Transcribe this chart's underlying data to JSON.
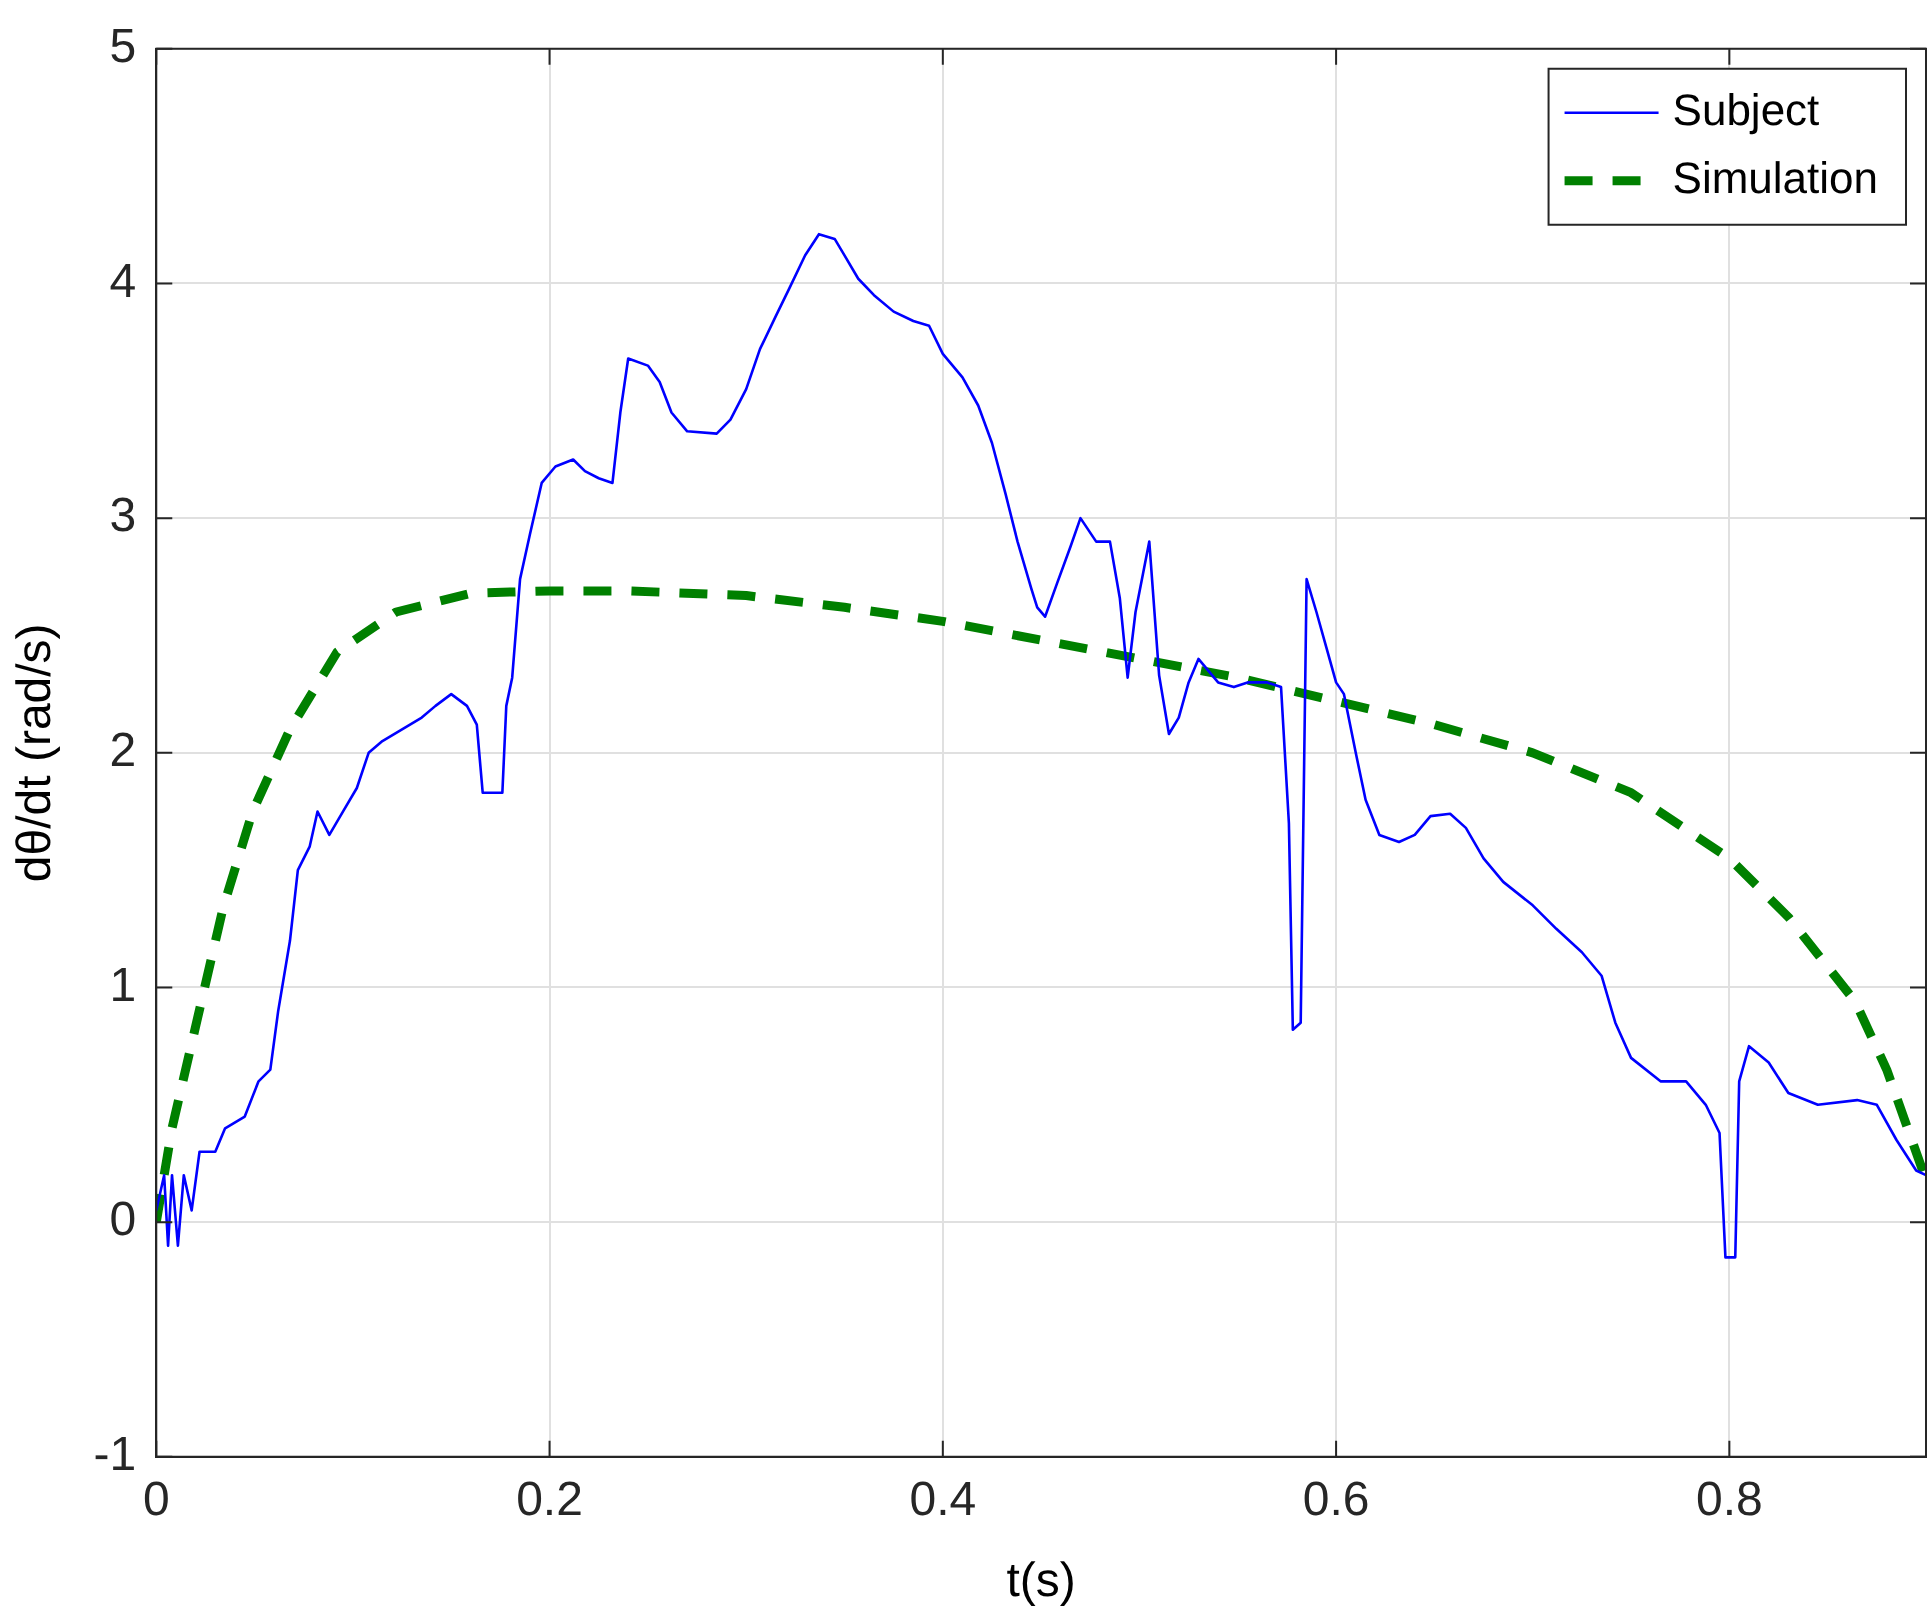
{
  "chart_data": {
    "type": "line",
    "xlabel": "t(s)",
    "ylabel": "dθ/dt (rad/s)",
    "xlim": [
      0,
      0.9
    ],
    "ylim": [
      -1,
      5
    ],
    "xticks": [
      0,
      0.2,
      0.4,
      0.6,
      0.8
    ],
    "yticks": [
      -1,
      0,
      1,
      2,
      3,
      4,
      5
    ],
    "grid": true,
    "legend": "top right",
    "series": [
      {
        "name": "Subject",
        "color": "#0000ff",
        "line_style": "solid",
        "x": [
          0,
          0.004,
          0.006,
          0.008,
          0.011,
          0.014,
          0.018,
          0.022,
          0.03,
          0.035,
          0.045,
          0.052,
          0.058,
          0.062,
          0.068,
          0.072,
          0.078,
          0.082,
          0.088,
          0.095,
          0.102,
          0.108,
          0.115,
          0.125,
          0.135,
          0.142,
          0.15,
          0.158,
          0.163,
          0.166,
          0.176,
          0.178,
          0.181,
          0.185,
          0.19,
          0.196,
          0.203,
          0.212,
          0.218,
          0.225,
          0.232,
          0.236,
          0.24,
          0.25,
          0.256,
          0.262,
          0.27,
          0.285,
          0.292,
          0.3,
          0.307,
          0.315,
          0.322,
          0.33,
          0.337,
          0.345,
          0.35,
          0.357,
          0.365,
          0.375,
          0.385,
          0.393,
          0.4,
          0.41,
          0.418,
          0.425,
          0.432,
          0.438,
          0.445,
          0.448,
          0.452,
          0.458,
          0.465,
          0.47,
          0.478,
          0.485,
          0.49,
          0.494,
          0.498,
          0.505,
          0.51,
          0.515,
          0.52,
          0.525,
          0.53,
          0.54,
          0.548,
          0.555,
          0.565,
          0.572,
          0.576,
          0.578,
          0.582,
          0.585,
          0.59,
          0.595,
          0.6,
          0.604,
          0.61,
          0.615,
          0.622,
          0.632,
          0.64,
          0.648,
          0.658,
          0.666,
          0.675,
          0.685,
          0.7,
          0.712,
          0.725,
          0.735,
          0.742,
          0.75,
          0.765,
          0.778,
          0.788,
          0.795,
          0.798,
          0.803,
          0.805,
          0.81,
          0.82,
          0.83,
          0.845,
          0.865,
          0.875,
          0.885,
          0.895,
          0.9
        ],
        "values": [
          0.05,
          0.2,
          -0.1,
          0.2,
          -0.1,
          0.2,
          0.05,
          0.3,
          0.3,
          0.4,
          0.45,
          0.6,
          0.65,
          0.9,
          1.2,
          1.5,
          1.6,
          1.75,
          1.65,
          1.75,
          1.85,
          2.0,
          2.05,
          2.1,
          2.15,
          2.2,
          2.25,
          2.2,
          2.12,
          1.83,
          1.83,
          2.2,
          2.32,
          2.74,
          2.93,
          3.15,
          3.22,
          3.25,
          3.2,
          3.17,
          3.15,
          3.45,
          3.68,
          3.65,
          3.58,
          3.45,
          3.37,
          3.36,
          3.42,
          3.55,
          3.72,
          3.86,
          3.98,
          4.12,
          4.21,
          4.19,
          4.12,
          4.02,
          3.95,
          3.88,
          3.84,
          3.82,
          3.7,
          3.6,
          3.48,
          3.32,
          3.1,
          2.9,
          2.7,
          2.62,
          2.58,
          2.72,
          2.88,
          3.0,
          2.9,
          2.9,
          2.66,
          2.32,
          2.6,
          2.9,
          2.33,
          2.08,
          2.15,
          2.3,
          2.4,
          2.3,
          2.28,
          2.3,
          2.3,
          2.28,
          1.7,
          0.82,
          0.85,
          2.74,
          2.6,
          2.45,
          2.3,
          2.25,
          2.0,
          1.8,
          1.65,
          1.62,
          1.65,
          1.73,
          1.74,
          1.68,
          1.55,
          1.45,
          1.35,
          1.25,
          1.15,
          1.05,
          0.85,
          0.7,
          0.6,
          0.6,
          0.5,
          0.38,
          -0.15,
          -0.15,
          0.6,
          0.75,
          0.68,
          0.55,
          0.5,
          0.52,
          0.5,
          0.35,
          0.22,
          0.2
        ]
      },
      {
        "name": "Simulation",
        "color": "#008000",
        "line_style": "dashed",
        "x": [
          0,
          0.008,
          0.021,
          0.034,
          0.049,
          0.068,
          0.092,
          0.122,
          0.16,
          0.2,
          0.24,
          0.3,
          0.35,
          0.4,
          0.45,
          0.5,
          0.55,
          0.6,
          0.65,
          0.7,
          0.75,
          0.8,
          0.83,
          0.864,
          0.88,
          0.9
        ],
        "values": [
          0,
          0.4,
          0.87,
          1.34,
          1.75,
          2.1,
          2.43,
          2.6,
          2.68,
          2.69,
          2.69,
          2.67,
          2.62,
          2.56,
          2.48,
          2.4,
          2.32,
          2.22,
          2.12,
          2.0,
          1.83,
          1.55,
          1.3,
          0.94,
          0.65,
          0.18
        ]
      }
    ]
  }
}
